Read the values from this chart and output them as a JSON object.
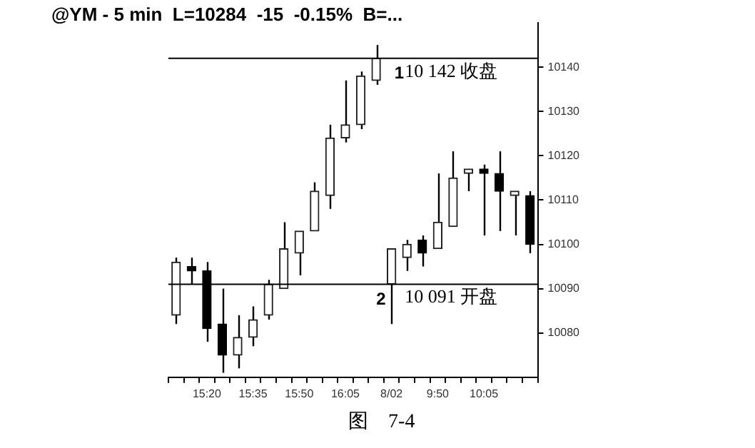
{
  "chart_data": {
    "type": "candlestick",
    "title": "@YM - 5 min  L=10284  -15  -0.15%  B=...",
    "categories": [
      null,
      null,
      "15:20",
      null,
      null,
      "15:35",
      null,
      null,
      "15:50",
      null,
      null,
      "16:05",
      null,
      null,
      "8/02",
      null,
      null,
      "9:50",
      null,
      null,
      "10:05",
      null,
      null,
      null
    ],
    "ohlc": [
      [
        10084,
        10097,
        10082,
        10096
      ],
      [
        10095,
        10097,
        10091,
        10094
      ],
      [
        10094,
        10096,
        10078,
        10081
      ],
      [
        10082,
        10090,
        10071,
        10075
      ],
      [
        10075,
        10084,
        10072,
        10079
      ],
      [
        10079,
        10086,
        10077,
        10083
      ],
      [
        10084,
        10092,
        10083,
        10091
      ],
      [
        10090,
        10105,
        10090,
        10099
      ],
      [
        10098,
        10103,
        10093,
        10103
      ],
      [
        10103,
        10114,
        10103,
        10112
      ],
      [
        10111,
        10127,
        10108,
        10124
      ],
      [
        10124,
        10137,
        10123,
        10127
      ],
      [
        10127,
        10139,
        10126,
        10138
      ],
      [
        10137,
        10145,
        10136,
        10142
      ],
      [
        10091,
        10099,
        10082,
        10099
      ],
      [
        10097,
        10101,
        10094,
        10100
      ],
      [
        10101,
        10102,
        10095,
        10098
      ],
      [
        10099,
        10116,
        10099,
        10105
      ],
      [
        10104,
        10121,
        10104,
        10115
      ],
      [
        10116,
        10117,
        10112,
        10117
      ],
      [
        10117,
        10118,
        10102,
        10116
      ],
      [
        10116,
        10121,
        10103,
        10112
      ],
      [
        10111,
        10112,
        10102,
        10112
      ],
      [
        10111,
        10112,
        10098,
        10100
      ]
    ],
    "ylim": [
      10070,
      10150
    ],
    "yticks": [
      10080,
      10090,
      10100,
      10110,
      10120,
      10130,
      10140
    ],
    "ref_lines": [
      {
        "axis": "y",
        "value": 10142,
        "label": "10 142 收盘",
        "color": "#000000"
      },
      {
        "axis": "y",
        "value": 10091,
        "label": "10 091 开盘",
        "color": "#000000"
      }
    ],
    "annotations": [
      {
        "text": "1",
        "x": "8/02",
        "y": 10142
      },
      {
        "text": "2",
        "x": "8/02",
        "y": 10091
      },
      "图    7-4"
    ],
    "grid": false,
    "legend": false
  }
}
